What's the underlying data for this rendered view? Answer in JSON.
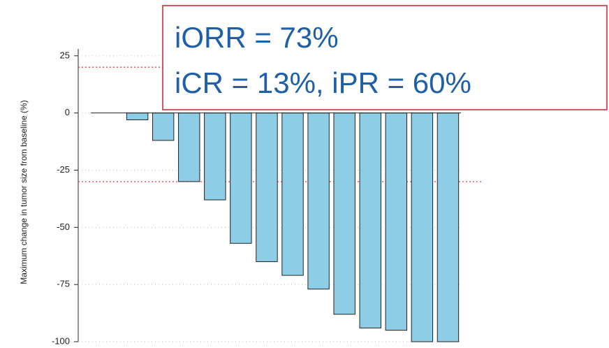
{
  "chart_data": {
    "type": "bar",
    "y_label": "Maximum change in tumor size from baseline (%)",
    "values": [
      0,
      -3,
      -12,
      -30,
      -38,
      -57,
      -65,
      -71,
      -77,
      -88,
      -94,
      -95,
      -100,
      -100
    ],
    "color": "#8ecde6",
    "ylim": [
      -100,
      28
    ],
    "yticks": [
      -100,
      -75,
      -50,
      -25,
      0,
      25
    ],
    "grid": true,
    "reference_lines": [
      20,
      -30
    ],
    "reference_color": "#e0413e",
    "annotations": [
      "iORR = 73%",
      "iCR = 13%, iPR = 60%"
    ]
  }
}
